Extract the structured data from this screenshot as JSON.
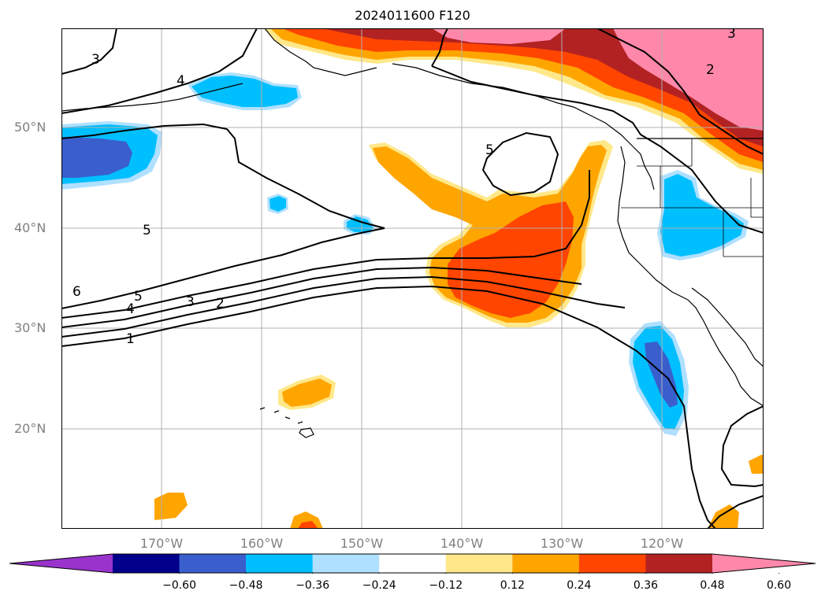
{
  "title": "2024011600 F120",
  "lat_labels": [
    {
      "text": "50°N",
      "lat": 50
    },
    {
      "text": "40°N",
      "lat": 40
    },
    {
      "text": "30°N",
      "lat": 30
    },
    {
      "text": "20°N",
      "lat": 20
    }
  ],
  "lon_labels": [
    {
      "text": "170°W",
      "lon": -170
    },
    {
      "text": "160°W",
      "lon": -160
    },
    {
      "text": "150°W",
      "lon": -150
    },
    {
      "text": "140°W",
      "lon": -140
    },
    {
      "text": "130°W",
      "lon": -130
    },
    {
      "text": "120°W",
      "lon": -120
    }
  ],
  "contour_labels": [
    "3",
    "4",
    "5",
    "5",
    "6",
    "5",
    "4",
    "3",
    "2",
    "1",
    "2",
    "3"
  ],
  "colorbar": {
    "colors": [
      "#9933cc",
      "#00008b",
      "#3a5fcd",
      "#00bfff",
      "#b0e0ff",
      "#ffffff",
      "#ffe88a",
      "#ffa500",
      "#ff4500",
      "#b22222",
      "#ff88aa"
    ],
    "tick_labels": [
      "−0.60",
      "−0.48",
      "−0.36",
      "−0.24",
      "−0.12",
      "0.12",
      "0.24",
      "0.36",
      "0.48",
      "0.60"
    ]
  },
  "colors": {
    "grid": "#b0b0b0",
    "coast": "#000000",
    "contour": "#000000"
  }
}
